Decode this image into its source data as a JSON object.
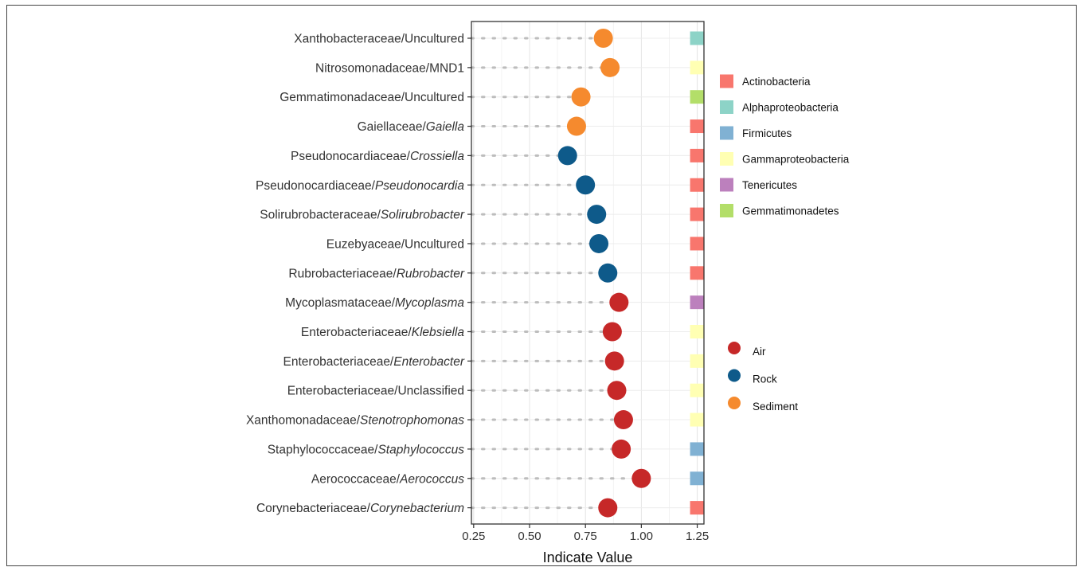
{
  "chart_data": {
    "type": "scatter",
    "xlabel": "Indicate Value",
    "ylabel": "",
    "title": "",
    "xlim": [
      0.24,
      1.28
    ],
    "x_ticks": [
      "0.25",
      "0.50",
      "0.75",
      "1.00",
      "1.25"
    ],
    "x_tick_values": [
      0.25,
      0.5,
      0.75,
      1.0,
      1.25
    ],
    "grid": true,
    "phylum_marker_x": 1.25,
    "categories": [
      {
        "family": "Xanthobacteraceae/",
        "genus": "Uncultured",
        "italic": false,
        "value": 0.83,
        "group": "Sediment",
        "phylum": "Alphaproteobacteria"
      },
      {
        "family": "Nitrosomonadaceae/",
        "genus": "MND1",
        "italic": false,
        "value": 0.86,
        "group": "Sediment",
        "phylum": "Gammaproteobacteria"
      },
      {
        "family": "Gemmatimonadaceae/",
        "genus": "Uncultured",
        "italic": false,
        "value": 0.73,
        "group": "Sediment",
        "phylum": "Gemmatimonadetes"
      },
      {
        "family": "Gaiellaceae/",
        "genus": "Gaiella",
        "italic": true,
        "value": 0.71,
        "group": "Sediment",
        "phylum": "Actinobacteria"
      },
      {
        "family": "Pseudonocardiaceae/",
        "genus": "Crossiella",
        "italic": true,
        "value": 0.67,
        "group": "Rock",
        "phylum": "Actinobacteria"
      },
      {
        "family": "Pseudonocardiaceae/",
        "genus": "Pseudonocardia",
        "italic": true,
        "value": 0.75,
        "group": "Rock",
        "phylum": "Actinobacteria"
      },
      {
        "family": "Solirubrobacteraceae/",
        "genus": "Solirubrobacter",
        "italic": true,
        "value": 0.8,
        "group": "Rock",
        "phylum": "Actinobacteria"
      },
      {
        "family": "Euzebyaceae/",
        "genus": "Uncultured",
        "italic": false,
        "value": 0.81,
        "group": "Rock",
        "phylum": "Actinobacteria"
      },
      {
        "family": "Rubrobacteriaceae/",
        "genus": "Rubrobacter",
        "italic": true,
        "value": 0.85,
        "group": "Rock",
        "phylum": "Actinobacteria"
      },
      {
        "family": "Mycoplasmataceae/",
        "genus": "Mycoplasma",
        "italic": true,
        "value": 0.9,
        "group": "Air",
        "phylum": "Tenericutes"
      },
      {
        "family": "Enterobacteriaceae/",
        "genus": "Klebsiella",
        "italic": true,
        "value": 0.87,
        "group": "Air",
        "phylum": "Gammaproteobacteria"
      },
      {
        "family": "Enterobacteriaceae/",
        "genus": "Enterobacter",
        "italic": true,
        "value": 0.88,
        "group": "Air",
        "phylum": "Gammaproteobacteria"
      },
      {
        "family": "Enterobacteriaceae/",
        "genus": "Unclassified",
        "italic": false,
        "value": 0.89,
        "group": "Air",
        "phylum": "Gammaproteobacteria"
      },
      {
        "family": "Xanthomonadaceae/",
        "genus": "Stenotrophomonas",
        "italic": true,
        "value": 0.92,
        "group": "Air",
        "phylum": "Gammaproteobacteria"
      },
      {
        "family": "Staphylococcaceae/",
        "genus": "Staphylococcus",
        "italic": true,
        "value": 0.91,
        "group": "Air",
        "phylum": "Firmicutes"
      },
      {
        "family": "Aerococcaceae/",
        "genus": "Aerococcus",
        "italic": true,
        "value": 1.0,
        "group": "Air",
        "phylum": "Firmicutes"
      },
      {
        "family": "Corynebacteriaceae/",
        "genus": "Corynebacterium",
        "italic": true,
        "value": 0.85,
        "group": "Air",
        "phylum": "Actinobacteria"
      }
    ],
    "legend_phylum": [
      {
        "name": "Actinobacteria",
        "color": "#F8766D"
      },
      {
        "name": "Alphaproteobacteria",
        "color": "#8DD3C7"
      },
      {
        "name": "Firmicutes",
        "color": "#80B1D3"
      },
      {
        "name": "Gammaproteobacteria",
        "color": "#FFFFB3"
      },
      {
        "name": "Tenericutes",
        "color": "#BC80BD"
      },
      {
        "name": "Gemmatimonadetes",
        "color": "#B3DE69"
      }
    ],
    "legend_group": [
      {
        "name": "Air",
        "color": "#C62828"
      },
      {
        "name": "Rock",
        "color": "#0E5A8A"
      },
      {
        "name": "Sediment",
        "color": "#F58A2E"
      }
    ]
  }
}
